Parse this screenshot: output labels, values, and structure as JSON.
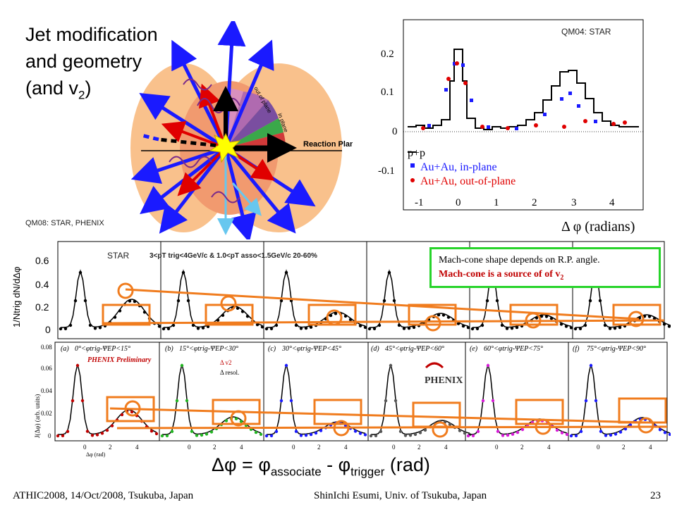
{
  "slide": {
    "title_lines": [
      "Jet modification",
      "and geometry"
    ],
    "title_line3_main": "(and v",
    "title_line3_sub": "2",
    "title_line3_end": ")",
    "qm04_label": "QM04: STAR",
    "qm08_label": "QM08: STAR, PHENIX",
    "star_label": "STAR",
    "cut_label": "3<pT trig<4GeV/c & 1.0<pT asso<1.5GeV/c 20-60%",
    "mach_line1": "Mach-cone shape depends on R.P. angle.",
    "mach_line2_main": "Mach-cone is a source of of v",
    "mach_line2_sub": "2",
    "xlabel_delta": "Δφ = φ",
    "xlabel_sub1": "associate",
    "xlabel_mid": " - φ",
    "xlabel_sub2": "trigger",
    "xlabel_end": " (rad)",
    "footer_left": "ATHIC2008, 14/Oct/2008, Tsukuba, Japan",
    "footer_center": "ShinIchi Esumi, Univ. of Tsukuba, Japan",
    "page_number": "23"
  },
  "diagram": {
    "out_of_plane": "out of plane",
    "in_plane": "in plane",
    "reaction_plane": "Reaction Plane"
  },
  "qm04_plot": {
    "legend": [
      "p+p",
      "Au+Au, in-plane",
      "Au+Au, out-of-plane"
    ],
    "legend_colors": [
      "#000000",
      "#1a1aff",
      "#e00000"
    ],
    "xlabel": "Δ φ (radians)",
    "yticks": [
      "0.2",
      "0.1",
      "0",
      "-0.1"
    ],
    "xticks": [
      "-1",
      "0",
      "1",
      "2",
      "3",
      "4"
    ]
  },
  "star_plot": {
    "ylabel": "1/Ntrig dN/dΔφ",
    "yticks": [
      "0.6",
      "0.4",
      "0.2",
      "0"
    ]
  },
  "phenix_plot": {
    "ylabel": "J(Δφ) (arb. units)",
    "yticks": [
      "0.08",
      "0.06",
      "0.04",
      "0.02",
      "0"
    ],
    "xlabel": "Δφ (rad)",
    "preliminary": "PHENIX Preliminary",
    "legend": [
      "Δ v2",
      "Δ resol."
    ],
    "logo": "PHENIX",
    "panels": [
      "(a)",
      "(b)",
      "(c)",
      "(d)",
      "(e)",
      "(f)"
    ],
    "panel_ranges": [
      "0°<φtrig-ΨEP<15°",
      "15°<φtrig-ΨEP<30°",
      "30°<φtrig-ΨEP<45°",
      "45°<φtrig-ΨEP<60°",
      "60°<φtrig-ΨEP<75°",
      "75°<φtrig-ΨEP<90°"
    ],
    "xticks": [
      "0",
      "2",
      "4"
    ]
  }
}
